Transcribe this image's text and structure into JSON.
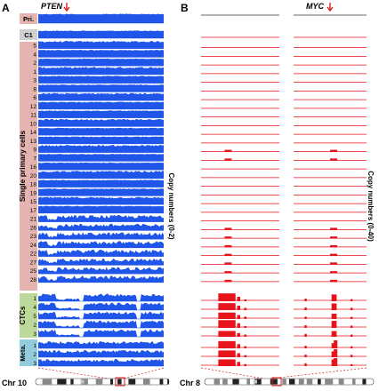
{
  "panel_a": {
    "letter": "A",
    "gene": "PTEN",
    "group_labels": {
      "primary": "Pri.",
      "c1": "C1",
      "single": "Single primary cells",
      "ctc": "CTCs",
      "meta": "Meta."
    },
    "single_cell_ids": [
      "5",
      "4",
      "2",
      "1",
      "3",
      "8",
      "6",
      "12",
      "11",
      "10",
      "14",
      "13",
      "9",
      "7",
      "16",
      "20",
      "18",
      "19",
      "15",
      "17",
      "21",
      "26",
      "23",
      "24",
      "22",
      "27",
      "25",
      "28"
    ],
    "ctc_ids": [
      "1",
      "4",
      "5",
      "2",
      "3"
    ],
    "meta_ids": [
      "1",
      "2",
      "3"
    ],
    "axis_label": "Copy numbers (0-2)",
    "chromosome": "Chr 10",
    "track_color": "#1f55e8"
  },
  "panel_b": {
    "letter": "B",
    "gene": "MYC",
    "axis_label": "Copy numbers (0-40)",
    "chromosome": "Chr 8",
    "track_color": "#e8141c"
  },
  "colors": {
    "primary_box": "#e3b4b0",
    "c1_box": "#cfcfcf",
    "single_box": "#e3b4b0",
    "ctc_box": "#bcd99b",
    "meta_box": "#93cddd",
    "arrow": "#e31a1c"
  }
}
